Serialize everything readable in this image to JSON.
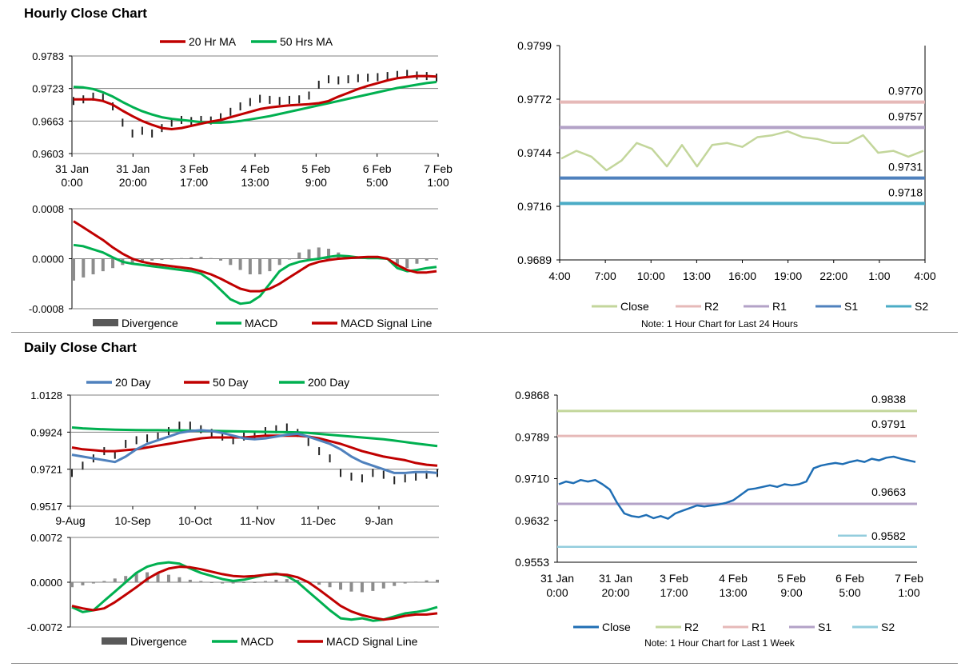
{
  "sections": [
    {
      "title": "Hourly Close Chart"
    },
    {
      "title": "Daily Close Chart"
    }
  ],
  "colors": {
    "ma_short": "#c00000",
    "ma_long": "#00b050",
    "ma_20day": "#4f81bd",
    "divergence": "#595959",
    "macd": "#00b050",
    "signal": "#c00000",
    "close_light": "#c3d69b",
    "close_blue": "#1f6eb4",
    "r2_pink": "#e6b9b8",
    "r1_lavender": "#b3a2c7",
    "s1_blue": "#4f81bd",
    "s2_teal": "#4bacc6",
    "r2_green": "#c3d69b",
    "r1_pink": "#e6b9b8",
    "s1_lavender": "#b3a2c7",
    "s2_lightblue": "#93cddd"
  },
  "chart_data": [
    {
      "id": "hourly-price",
      "type": "line",
      "title": "",
      "legend": [
        "20 Hr MA",
        "50 Hrs MA"
      ],
      "legend_placement": "top",
      "ylim": [
        0.9603,
        0.9783
      ],
      "y_ticks": [
        "0.9783",
        "0.9723",
        "0.9663",
        "0.9603"
      ],
      "x_ticks": [
        [
          "31 Jan",
          "0:00"
        ],
        [
          "31 Jan",
          "20:00"
        ],
        [
          "3 Feb",
          "17:00"
        ],
        [
          "4 Feb",
          "13:00"
        ],
        [
          "5 Feb",
          "9:00"
        ],
        [
          "6 Feb",
          "5:00"
        ],
        [
          "7 Feb",
          "1:00"
        ]
      ],
      "grid": "horizontal",
      "series": [
        {
          "name": "20 Hr MA",
          "color_key": "ma_short",
          "values": [
            0.9703,
            0.9703,
            0.9703,
            0.97,
            0.9693,
            0.9682,
            0.9672,
            0.9663,
            0.9656,
            0.965,
            0.9648,
            0.965,
            0.9654,
            0.9658,
            0.9662,
            0.9665,
            0.967,
            0.9675,
            0.968,
            0.9685,
            0.9688,
            0.969,
            0.9692,
            0.9693,
            0.9694,
            0.9696,
            0.97,
            0.9708,
            0.9715,
            0.9722,
            0.9728,
            0.9733,
            0.9738,
            0.9742,
            0.9744,
            0.9746,
            0.9746,
            0.9745
          ]
        },
        {
          "name": "50 Hrs MA",
          "color_key": "ma_long",
          "values": [
            0.9726,
            0.9725,
            0.9722,
            0.9716,
            0.9708,
            0.9698,
            0.9689,
            0.9681,
            0.9675,
            0.967,
            0.9667,
            0.9665,
            0.9663,
            0.9661,
            0.966,
            0.966,
            0.9661,
            0.9663,
            0.9666,
            0.9669,
            0.9672,
            0.9676,
            0.968,
            0.9684,
            0.9688,
            0.9692,
            0.9696,
            0.97,
            0.9704,
            0.9708,
            0.9712,
            0.9716,
            0.972,
            0.9724,
            0.9727,
            0.973,
            0.9733,
            0.9735
          ]
        },
        {
          "name": "Close",
          "color_key": "divergence",
          "style": "bars",
          "values": [
            0.97,
            0.9703,
            0.9708,
            0.9706,
            0.969,
            0.966,
            0.964,
            0.9645,
            0.964,
            0.965,
            0.966,
            0.9665,
            0.9663,
            0.9665,
            0.9664,
            0.967,
            0.968,
            0.969,
            0.9698,
            0.9704,
            0.9702,
            0.97,
            0.9702,
            0.9703,
            0.971,
            0.973,
            0.974,
            0.9738,
            0.974,
            0.9742,
            0.9743,
            0.9744,
            0.9746,
            0.9748,
            0.975,
            0.9747,
            0.9746,
            0.9743
          ]
        }
      ]
    },
    {
      "id": "hourly-macd",
      "type": "line",
      "title": "",
      "legend": [
        "Divergence",
        "MACD",
        "MACD Signal Line"
      ],
      "legend_placement": "bottom",
      "ylim": [
        -0.0008,
        0.0008
      ],
      "y_ticks": [
        "0.0008",
        "0.0000",
        "-0.0008"
      ],
      "grid": "horizontal",
      "series": [
        {
          "name": "Divergence",
          "color_key": "divergence",
          "style": "histogram",
          "values": [
            -0.00035,
            -0.0003,
            -0.00025,
            -0.0002,
            -0.00015,
            -0.0001,
            -8e-05,
            -5e-05,
            -3e-05,
            -2e-05,
            -1e-05,
            1e-05,
            2e-05,
            3e-05,
            1e-05,
            -3e-05,
            -0.0001,
            -0.00018,
            -0.00025,
            -0.00025,
            -0.0002,
            -0.0001,
            0.0,
            0.0001,
            0.00015,
            0.00018,
            0.00016,
            0.0001,
            5e-05,
            2e-05,
            1e-05,
            2e-05,
            0.0,
            -0.0001,
            -0.00015,
            -8e-05,
            -3e-05,
            -1e-05
          ]
        },
        {
          "name": "MACD",
          "color_key": "macd",
          "values": [
            0.00022,
            0.0002,
            0.00015,
            0.0001,
            2e-05,
            -5e-05,
            -8e-05,
            -0.0001,
            -0.00012,
            -0.00014,
            -0.00016,
            -0.00018,
            -0.0002,
            -0.00024,
            -0.00035,
            -0.0005,
            -0.00065,
            -0.00072,
            -0.0007,
            -0.0006,
            -0.0004,
            -0.0002,
            -0.0001,
            -5e-05,
            -2e-05,
            0.0,
            3e-05,
            5e-05,
            4e-05,
            2e-05,
            1e-05,
            1e-05,
            0.0,
            -0.00015,
            -0.0002,
            -0.00018,
            -0.00015,
            -0.00013
          ]
        },
        {
          "name": "MACD Signal Line",
          "color_key": "signal",
          "values": [
            0.0006,
            0.0005,
            0.0004,
            0.0003,
            0.00018,
            8e-05,
            0.0,
            -5e-05,
            -8e-05,
            -0.0001,
            -0.00012,
            -0.00014,
            -0.00016,
            -0.0002,
            -0.00025,
            -0.00032,
            -0.0004,
            -0.00048,
            -0.00052,
            -0.00052,
            -0.00048,
            -0.0004,
            -0.0003,
            -0.0002,
            -0.0001,
            -5e-05,
            -2e-05,
            0.0,
            1e-05,
            2e-05,
            3e-05,
            3e-05,
            0.0,
            -0.0001,
            -0.00018,
            -0.00022,
            -0.00022,
            -0.0002
          ]
        }
      ]
    },
    {
      "id": "hourly-24h",
      "type": "line",
      "title": "",
      "note": "Note: 1 Hour Chart for Last 24 Hours",
      "legend": [
        "Close",
        "R2",
        "R1",
        "S1",
        "S2"
      ],
      "legend_placement": "bottom",
      "ylim": [
        0.9689,
        0.9799
      ],
      "y_ticks": [
        "0.9799",
        "0.9772",
        "0.9744",
        "0.9716",
        "0.9689"
      ],
      "x_ticks": [
        "4:00",
        "7:00",
        "10:00",
        "13:00",
        "16:00",
        "19:00",
        "22:00",
        "1:00",
        "4:00"
      ],
      "grid": "none",
      "levels": [
        {
          "name": "R2",
          "value": 0.977,
          "label": "0.9770",
          "color_key": "r2_pink"
        },
        {
          "name": "R1",
          "value": 0.9757,
          "label": "0.9757",
          "color_key": "r1_lavender"
        },
        {
          "name": "S1",
          "value": 0.9731,
          "label": "0.9731",
          "color_key": "s1_blue"
        },
        {
          "name": "S2",
          "value": 0.9718,
          "label": "0.9718",
          "color_key": "s2_teal"
        }
      ],
      "series": [
        {
          "name": "Close",
          "color_key": "close_light",
          "values": [
            0.9741,
            0.9745,
            0.9742,
            0.9735,
            0.974,
            0.9749,
            0.9746,
            0.9737,
            0.9748,
            0.9737,
            0.9748,
            0.9749,
            0.9747,
            0.9752,
            0.9753,
            0.9755,
            0.9752,
            0.9751,
            0.9749,
            0.9749,
            0.9753,
            0.9744,
            0.9745,
            0.9742,
            0.9745
          ]
        }
      ]
    },
    {
      "id": "daily-price",
      "type": "line",
      "title": "",
      "legend": [
        "20 Day",
        "50 Day",
        "200 Day"
      ],
      "legend_placement": "top",
      "ylim": [
        0.9517,
        1.0128
      ],
      "y_ticks": [
        "1.0128",
        "0.9924",
        "0.9721",
        "0.9517"
      ],
      "x_ticks": [
        "9-Aug",
        "10-Sep",
        "10-Oct",
        "11-Nov",
        "11-Dec",
        "9-Jan"
      ],
      "grid": "horizontal",
      "series": [
        {
          "name": "20 Day",
          "color_key": "ma_20day",
          "values": [
            0.98,
            0.979,
            0.978,
            0.977,
            0.976,
            0.979,
            0.983,
            0.986,
            0.988,
            0.99,
            0.992,
            0.993,
            0.9935,
            0.993,
            0.992,
            0.9905,
            0.989,
            0.9885,
            0.989,
            0.99,
            0.991,
            0.9915,
            0.99,
            0.988,
            0.986,
            0.983,
            0.979,
            0.976,
            0.974,
            0.972,
            0.97,
            0.97,
            0.9705,
            0.9705,
            0.97
          ]
        },
        {
          "name": "50 Day",
          "color_key": "ma_short",
          "values": [
            0.984,
            0.983,
            0.9825,
            0.982,
            0.982,
            0.9825,
            0.983,
            0.984,
            0.985,
            0.986,
            0.987,
            0.988,
            0.989,
            0.9895,
            0.9895,
            0.9895,
            0.9895,
            0.99,
            0.9905,
            0.9905,
            0.9905,
            0.9905,
            0.99,
            0.989,
            0.9875,
            0.986,
            0.984,
            0.982,
            0.9805,
            0.979,
            0.978,
            0.977,
            0.9755,
            0.9745,
            0.974
          ]
        },
        {
          "name": "200 Day",
          "color_key": "ma_long",
          "values": [
            0.995,
            0.9945,
            0.9942,
            0.994,
            0.9938,
            0.9937,
            0.9936,
            0.9935,
            0.9935,
            0.9934,
            0.9934,
            0.9933,
            0.9932,
            0.9931,
            0.993,
            0.9929,
            0.9928,
            0.9927,
            0.9926,
            0.9925,
            0.9924,
            0.9923,
            0.992,
            0.9915,
            0.991,
            0.9905,
            0.99,
            0.9895,
            0.989,
            0.9885,
            0.9878,
            0.987,
            0.9862,
            0.9855,
            0.9848
          ]
        },
        {
          "name": "Close",
          "color_key": "divergence",
          "style": "bars",
          "values": [
            0.97,
            0.974,
            0.978,
            0.982,
            0.98,
            0.986,
            0.988,
            0.989,
            0.99,
            0.993,
            0.996,
            0.996,
            0.994,
            0.992,
            0.99,
            0.988,
            0.99,
            0.991,
            0.993,
            0.994,
            0.995,
            0.992,
            0.987,
            0.982,
            0.978,
            0.97,
            0.968,
            0.967,
            0.97,
            0.969,
            0.966,
            0.967,
            0.968,
            0.969,
            0.97
          ]
        }
      ]
    },
    {
      "id": "daily-macd",
      "type": "line",
      "title": "",
      "legend": [
        "Divergence",
        "MACD",
        "MACD Signal Line"
      ],
      "legend_placement": "bottom",
      "ylim": [
        -0.0072,
        0.0072
      ],
      "y_ticks": [
        "0.0072",
        "0.0000",
        "-0.0072"
      ],
      "grid": "horizontal",
      "series": [
        {
          "name": "Divergence",
          "color_key": "divergence",
          "style": "histogram",
          "values": [
            -0.0008,
            -0.0005,
            -0.0002,
            0.0002,
            0.0006,
            0.001,
            0.0014,
            0.0016,
            0.0015,
            0.0012,
            0.0008,
            0.0004,
            0.0002,
            0.0,
            -0.0002,
            -0.0002,
            -0.0001,
            0.0,
            0.0002,
            0.0004,
            0.0005,
            0.0004,
            0.0001,
            -0.0004,
            -0.0008,
            -0.0012,
            -0.0015,
            -0.0016,
            -0.0014,
            -0.001,
            -0.0006,
            -0.0002,
            0.0001,
            0.0003,
            0.0004
          ]
        },
        {
          "name": "MACD",
          "color_key": "macd",
          "values": [
            -0.004,
            -0.0048,
            -0.0045,
            -0.003,
            -0.0015,
            0.0,
            0.0015,
            0.0025,
            0.003,
            0.0032,
            0.003,
            0.0022,
            0.0015,
            0.001,
            0.0005,
            0.0002,
            0.0004,
            0.0008,
            0.0012,
            0.0014,
            0.001,
            0.0,
            -0.0015,
            -0.003,
            -0.0045,
            -0.0058,
            -0.006,
            -0.0058,
            -0.0062,
            -0.006,
            -0.0055,
            -0.005,
            -0.0048,
            -0.0045,
            -0.004
          ]
        },
        {
          "name": "MACD Signal Line",
          "color_key": "signal",
          "values": [
            -0.0038,
            -0.0042,
            -0.0045,
            -0.0042,
            -0.0032,
            -0.002,
            -0.0008,
            0.0005,
            0.0015,
            0.0022,
            0.0025,
            0.0024,
            0.0021,
            0.0017,
            0.0013,
            0.001,
            0.0009,
            0.001,
            0.0012,
            0.0013,
            0.0012,
            0.0008,
            0.0,
            -0.0012,
            -0.0025,
            -0.0038,
            -0.0047,
            -0.0053,
            -0.0057,
            -0.006,
            -0.0058,
            -0.0054,
            -0.0052,
            -0.0052,
            -0.005
          ]
        }
      ]
    },
    {
      "id": "daily-week",
      "type": "line",
      "title": "",
      "note": "Note: 1 Hour Chart for Last 1 Week",
      "legend": [
        "Close",
        "R2",
        "R1",
        "S1",
        "S2"
      ],
      "legend_placement": "bottom",
      "ylim": [
        0.9553,
        0.9868
      ],
      "y_ticks": [
        "0.9868",
        "0.9789",
        "0.9710",
        "0.9632",
        "0.9553"
      ],
      "x_ticks": [
        [
          "31 Jan",
          "0:00"
        ],
        [
          "31 Jan",
          "20:00"
        ],
        [
          "3 Feb",
          "17:00"
        ],
        [
          "4 Feb",
          "13:00"
        ],
        [
          "5 Feb",
          "9:00"
        ],
        [
          "6 Feb",
          "5:00"
        ],
        [
          "7 Feb",
          "1:00"
        ]
      ],
      "grid": "none",
      "levels": [
        {
          "name": "R2",
          "value": 0.9838,
          "label": "0.9838",
          "color_key": "r2_green"
        },
        {
          "name": "R1",
          "value": 0.9791,
          "label": "0.9791",
          "color_key": "r1_pink"
        },
        {
          "name": "S1",
          "value": 0.9663,
          "label": "0.9663",
          "color_key": "s1_lavender"
        },
        {
          "name": "S2",
          "value": 0.9582,
          "label": "0.9582",
          "color_key": "s2_lightblue"
        }
      ],
      "series": [
        {
          "name": "Close",
          "color_key": "close_blue",
          "values": [
            0.97,
            0.9705,
            0.9702,
            0.9708,
            0.9705,
            0.9708,
            0.97,
            0.969,
            0.9665,
            0.9645,
            0.964,
            0.9638,
            0.9642,
            0.9636,
            0.964,
            0.9635,
            0.9645,
            0.965,
            0.9655,
            0.966,
            0.9658,
            0.966,
            0.9662,
            0.9665,
            0.967,
            0.968,
            0.969,
            0.9692,
            0.9695,
            0.9698,
            0.9695,
            0.97,
            0.9698,
            0.97,
            0.9705,
            0.973,
            0.9735,
            0.9738,
            0.974,
            0.9738,
            0.9742,
            0.9745,
            0.9742,
            0.9748,
            0.9745,
            0.975,
            0.9752,
            0.9748,
            0.9745,
            0.9742
          ]
        }
      ]
    }
  ]
}
